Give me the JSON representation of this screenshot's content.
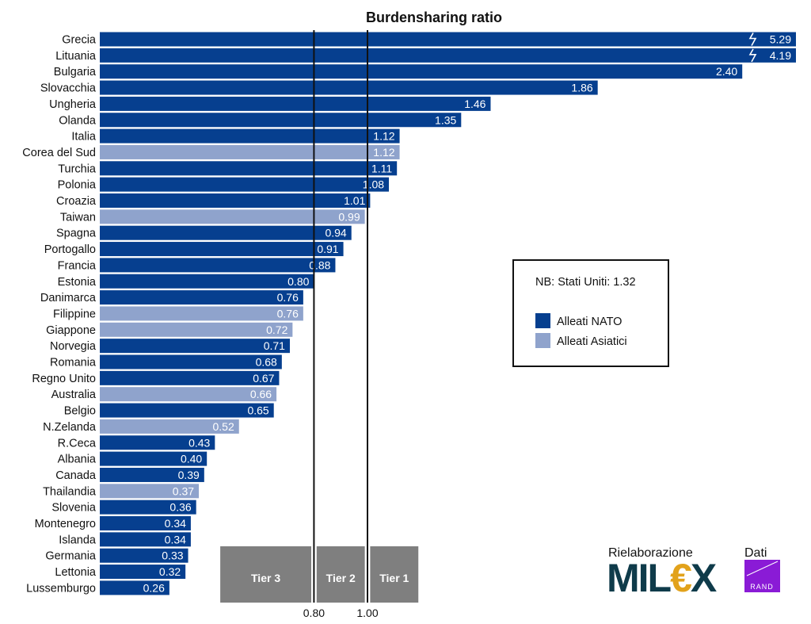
{
  "chart_data": {
    "type": "bar",
    "orientation": "horizontal",
    "title": "Burdensharing ratio",
    "categories": [
      "Grecia",
      "Lituania",
      "Bulgaria",
      "Slovacchia",
      "Ungheria",
      "Olanda",
      "Italia",
      "Corea del Sud",
      "Turchia",
      "Polonia",
      "Croazia",
      "Taiwan",
      "Spagna",
      "Portogallo",
      "Francia",
      "Estonia",
      "Danimarca",
      "Filippine",
      "Giappone",
      "Norvegia",
      "Romania",
      "Regno Unito",
      "Australia",
      "Belgio",
      "N.Zelanda",
      "R.Ceca",
      "Albania",
      "Canada",
      "Thailandia",
      "Slovenia",
      "Montenegro",
      "Islanda",
      "Germania",
      "Lettonia",
      "Lussemburgo"
    ],
    "values": [
      5.29,
      4.19,
      2.4,
      1.86,
      1.46,
      1.35,
      1.12,
      1.12,
      1.11,
      1.08,
      1.01,
      0.99,
      0.94,
      0.91,
      0.88,
      0.8,
      0.76,
      0.76,
      0.72,
      0.71,
      0.68,
      0.67,
      0.66,
      0.65,
      0.52,
      0.43,
      0.4,
      0.39,
      0.37,
      0.36,
      0.34,
      0.34,
      0.33,
      0.32,
      0.26
    ],
    "value_labels": [
      "5.29",
      "4.19",
      "2.40",
      "1.86",
      "1.46",
      "1.35",
      "1.12",
      "1.12",
      "1.11",
      "1.08",
      "1.01",
      "0.99",
      "0.94",
      "0.91",
      "0.88",
      "0.80",
      "0.76",
      "0.76",
      "0.72",
      "0.71",
      "0.68",
      "0.67",
      "0.66",
      "0.65",
      "0.52",
      "0.43",
      "0.40",
      "0.39",
      "0.37",
      "0.36",
      "0.34",
      "0.34",
      "0.33",
      "0.32",
      "0.26"
    ],
    "groups": [
      "NATO",
      "NATO",
      "NATO",
      "NATO",
      "NATO",
      "NATO",
      "NATO",
      "Asia",
      "NATO",
      "NATO",
      "NATO",
      "Asia",
      "NATO",
      "NATO",
      "NATO",
      "NATO",
      "NATO",
      "Asia",
      "Asia",
      "NATO",
      "NATO",
      "NATO",
      "Asia",
      "NATO",
      "Asia",
      "NATO",
      "NATO",
      "NATO",
      "Asia",
      "NATO",
      "NATO",
      "NATO",
      "NATO",
      "NATO",
      "NATO"
    ],
    "truncated": [
      "Grecia",
      "Lituania"
    ],
    "xlim": [
      0,
      2.6
    ],
    "reference_lines": [
      {
        "value": 0.8,
        "label": "0.80"
      },
      {
        "value": 1.0,
        "label": "1.00"
      }
    ],
    "tiers": [
      {
        "label": "Tier 3",
        "from": 0.45,
        "to": 0.79
      },
      {
        "label": "Tier 2",
        "from": 0.81,
        "to": 0.99
      },
      {
        "label": "Tier 1",
        "from": 1.01,
        "to": 1.19
      }
    ],
    "colors": {
      "NATO": "#063f8f",
      "Asia": "#8fa3cc"
    },
    "legend": {
      "note": "NB: Stati Uniti: 1.32",
      "items": [
        {
          "key": "NATO",
          "label": "Alleati NATO"
        },
        {
          "key": "Asia",
          "label": "Alleati Asiatici"
        }
      ]
    }
  },
  "logos": {
    "rielaborazione": "Rielaborazione",
    "milex": "MIL€X",
    "dati": "Dati",
    "rand": "RAND"
  }
}
